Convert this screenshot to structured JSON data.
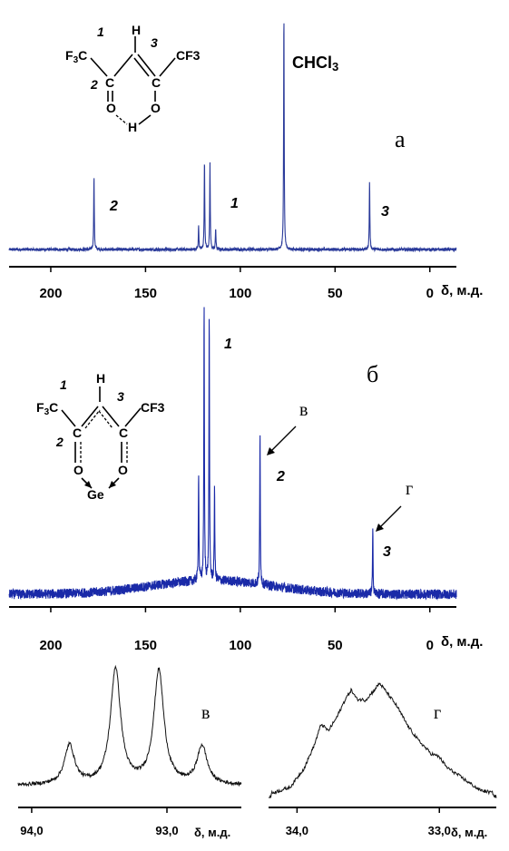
{
  "chart_data": [
    {
      "id": "a",
      "type": "line",
      "panel_label": "а",
      "xlabel": "δ, м.д.",
      "xlim": [
        222,
        -14
      ],
      "x_reversed": true,
      "x_ticks": [
        200,
        150,
        100,
        50,
        0
      ],
      "x_tick_labels": [
        "200",
        "150",
        "100",
        "50",
        "0"
      ],
      "color": "#2a3a9a",
      "baseline_noise": "low",
      "peaks": [
        {
          "x": 177.2,
          "height": 0.31
        },
        {
          "x": 122.0,
          "height": 0.1
        },
        {
          "x": 118.9,
          "height": 0.38
        },
        {
          "x": 116.0,
          "height": 0.36
        },
        {
          "x": 113.0,
          "height": 0.09
        },
        {
          "x": 77.0,
          "height": 1.0
        },
        {
          "x": 31.8,
          "height": 0.29
        }
      ],
      "annotations": [
        {
          "text": "2",
          "x": 172
        },
        {
          "text": "1",
          "x": 108
        },
        {
          "text": "3",
          "x": 26
        },
        {
          "text": "CHCl3",
          "x": 60
        }
      ],
      "structure": {
        "atoms": [
          "F3C",
          "H",
          "CF3",
          "C",
          "C",
          "O",
          "O",
          "H"
        ],
        "numbers": [
          "1",
          "2",
          "3"
        ]
      }
    },
    {
      "id": "b",
      "type": "line",
      "panel_label": "б",
      "xlabel": "δ, м.д.",
      "xlim": [
        222,
        -14
      ],
      "x_reversed": true,
      "x_ticks": [
        200,
        150,
        100,
        50,
        0
      ],
      "x_tick_labels": [
        "200",
        "150",
        "100",
        "50",
        "0"
      ],
      "color": "#1a2aa8",
      "baseline_noise": "high",
      "broad_hump": {
        "center": 115,
        "width": 45,
        "height": 0.05
      },
      "peaks": [
        {
          "x": 122.0,
          "height": 0.4
        },
        {
          "x": 119.1,
          "height": 1.0
        },
        {
          "x": 116.4,
          "height": 0.97
        },
        {
          "x": 113.6,
          "height": 0.34
        },
        {
          "x": 89.6,
          "height": 0.55
        },
        {
          "x": 30.1,
          "height": 0.23
        }
      ],
      "annotations": [
        {
          "text": "1",
          "x": 112
        },
        {
          "text": "2",
          "x": 82
        },
        {
          "text": "3",
          "x": 24
        },
        {
          "text": "в",
          "x": 92,
          "arrow_to": 89.6
        },
        {
          "text": "г",
          "x": 28,
          "arrow_to": 30.1
        }
      ],
      "structure": {
        "atoms": [
          "F3C",
          "H",
          "CF3",
          "C",
          "C",
          "O",
          "O",
          "Ge"
        ],
        "numbers": [
          "1",
          "2",
          "3"
        ]
      }
    },
    {
      "id": "v",
      "type": "line",
      "panel_label": "в",
      "xlabel": "δ, м.д.",
      "xlim": [
        94.1,
        92.45
      ],
      "x_reversed": true,
      "x_ticks": [
        94.0,
        93.0
      ],
      "x_tick_labels": [
        "94,0",
        "93,0"
      ],
      "color": "#111111",
      "peaks": [
        {
          "x": 93.72,
          "height": 0.34
        },
        {
          "x": 93.38,
          "height": 1.0
        },
        {
          "x": 93.06,
          "height": 0.98
        },
        {
          "x": 92.74,
          "height": 0.33
        }
      ]
    },
    {
      "id": "g",
      "type": "line",
      "panel_label": "г",
      "xlabel": "δ, м.д.",
      "xlim": [
        34.2,
        32.6
      ],
      "x_reversed": true,
      "x_ticks": [
        34.0,
        33.0
      ],
      "x_tick_labels": [
        "34,0",
        "33,0"
      ],
      "color": "#111111",
      "envelope": [
        [
          34.18,
          0.03
        ],
        [
          34.05,
          0.08
        ],
        [
          33.95,
          0.25
        ],
        [
          33.88,
          0.45
        ],
        [
          33.83,
          0.64
        ],
        [
          33.78,
          0.58
        ],
        [
          33.72,
          0.7
        ],
        [
          33.66,
          0.86
        ],
        [
          33.62,
          0.94
        ],
        [
          33.58,
          0.86
        ],
        [
          33.52,
          0.85
        ],
        [
          33.47,
          0.92
        ],
        [
          33.42,
          1.0
        ],
        [
          33.37,
          0.92
        ],
        [
          33.3,
          0.8
        ],
        [
          33.22,
          0.62
        ],
        [
          33.15,
          0.5
        ],
        [
          33.06,
          0.38
        ],
        [
          33.0,
          0.35
        ],
        [
          32.95,
          0.26
        ],
        [
          32.88,
          0.2
        ],
        [
          32.8,
          0.13
        ],
        [
          32.72,
          0.06
        ],
        [
          32.62,
          0.03
        ]
      ]
    }
  ]
}
